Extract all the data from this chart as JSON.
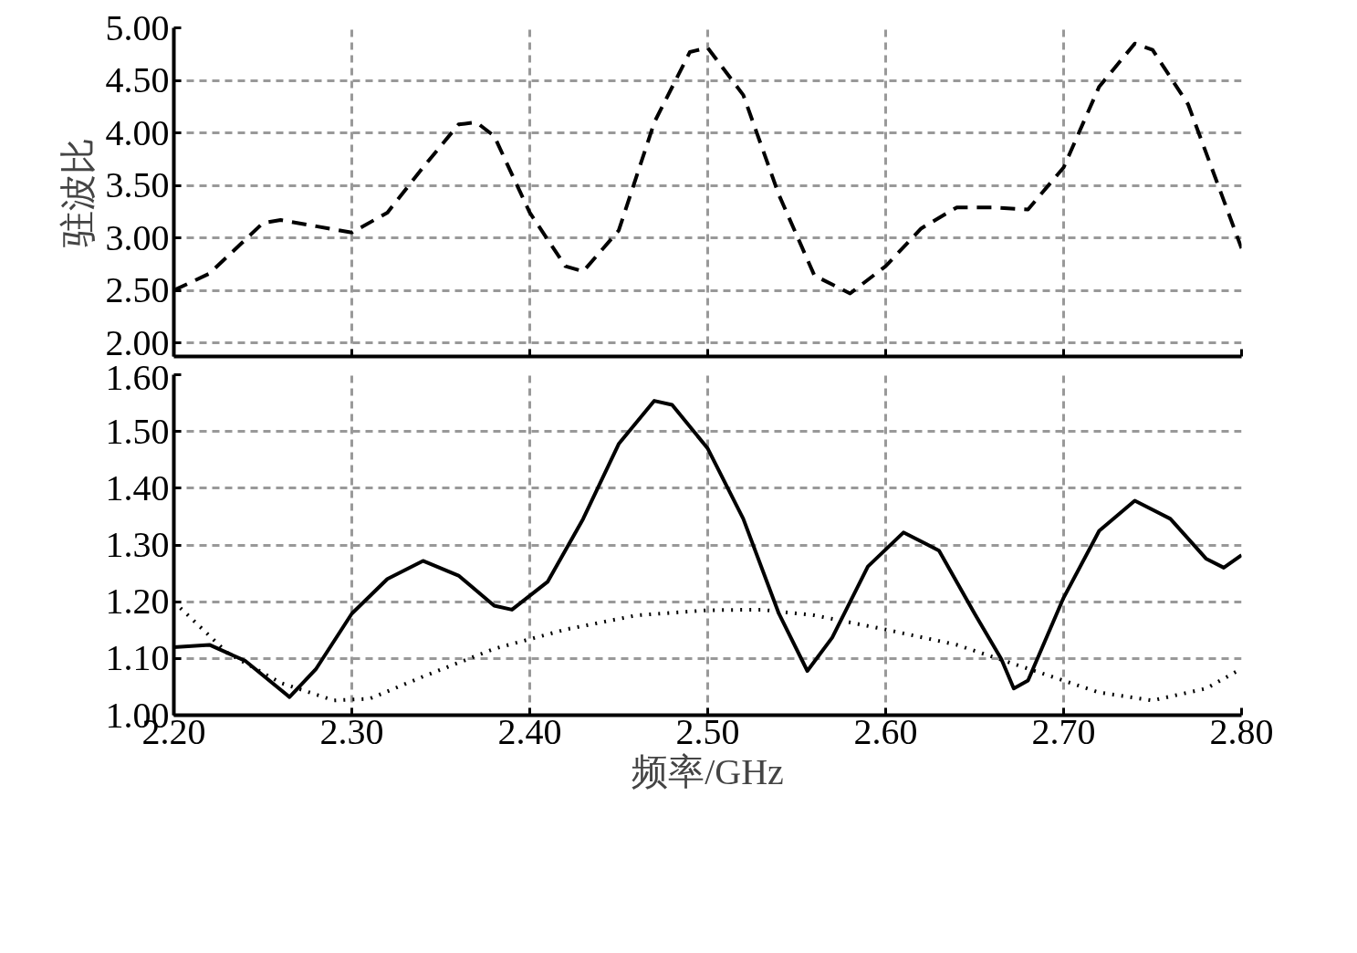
{
  "chart_data": [
    {
      "type": "line",
      "ylabel": "驻波比",
      "xlim": [
        2.2,
        2.8
      ],
      "ylim": [
        1.87,
        5.0
      ],
      "xticks": [
        2.2,
        2.3,
        2.4,
        2.5,
        2.6,
        2.7,
        2.8
      ],
      "yticks": [
        {
          "value": 2.0,
          "label": "2.00"
        },
        {
          "value": 2.5,
          "label": "2.50"
        },
        {
          "value": 3.0,
          "label": "3.00"
        },
        {
          "value": 3.5,
          "label": "3.50"
        },
        {
          "value": 4.0,
          "label": "4.00"
        },
        {
          "value": 4.5,
          "label": "4.50"
        },
        {
          "value": 5.0,
          "label": "5.00"
        }
      ],
      "tick_labels": "y",
      "grid": true,
      "marker": "none",
      "series": [
        {
          "color": "#000000",
          "line_style": "dashed",
          "x": [
            2.2,
            2.22,
            2.25,
            2.26,
            2.28,
            2.3,
            2.32,
            2.34,
            2.36,
            2.37,
            2.38,
            2.4,
            2.42,
            2.43,
            2.45,
            2.47,
            2.49,
            2.5,
            2.52,
            2.54,
            2.56,
            2.58,
            2.6,
            2.62,
            2.64,
            2.66,
            2.68,
            2.7,
            2.72,
            2.74,
            2.75,
            2.77,
            2.8
          ],
          "values": [
            2.5,
            2.66,
            3.14,
            3.17,
            3.11,
            3.05,
            3.24,
            3.67,
            4.08,
            4.1,
            3.97,
            3.24,
            2.73,
            2.68,
            3.07,
            4.1,
            4.77,
            4.81,
            4.36,
            3.41,
            2.64,
            2.47,
            2.73,
            3.09,
            3.29,
            3.29,
            3.27,
            3.67,
            4.44,
            4.85,
            4.79,
            4.27,
            2.9
          ]
        }
      ]
    },
    {
      "type": "line",
      "xlabel": "频率/GHz",
      "xlim": [
        2.2,
        2.8
      ],
      "ylim": [
        1.0,
        1.6
      ],
      "xticks": [
        {
          "value": 2.2,
          "label": "2.20"
        },
        {
          "value": 2.3,
          "label": "2.30"
        },
        {
          "value": 2.4,
          "label": "2.40"
        },
        {
          "value": 2.5,
          "label": "2.50"
        },
        {
          "value": 2.6,
          "label": "2.60"
        },
        {
          "value": 2.7,
          "label": "2.70"
        },
        {
          "value": 2.8,
          "label": "2.80"
        }
      ],
      "yticks": [
        {
          "value": 1.0,
          "label": "1.00"
        },
        {
          "value": 1.1,
          "label": "1.10"
        },
        {
          "value": 1.2,
          "label": "1.20"
        },
        {
          "value": 1.3,
          "label": "1.30"
        },
        {
          "value": 1.4,
          "label": "1.40"
        },
        {
          "value": 1.5,
          "label": "1.50"
        },
        {
          "value": 1.6,
          "label": "1.60"
        }
      ],
      "grid": true,
      "marker": "none",
      "series": [
        {
          "color": "#000000",
          "line_style": "solid",
          "x": [
            2.2,
            2.22,
            2.24,
            2.265,
            2.28,
            2.3,
            2.32,
            2.34,
            2.36,
            2.38,
            2.39,
            2.41,
            2.43,
            2.45,
            2.47,
            2.48,
            2.5,
            2.52,
            2.54,
            2.556,
            2.57,
            2.59,
            2.61,
            2.63,
            2.65,
            2.665,
            2.672,
            2.68,
            2.7,
            2.72,
            2.74,
            2.76,
            2.78,
            2.79,
            2.8
          ],
          "values": [
            1.12,
            1.124,
            1.096,
            1.032,
            1.082,
            1.179,
            1.24,
            1.272,
            1.246,
            1.193,
            1.186,
            1.235,
            1.346,
            1.478,
            1.554,
            1.547,
            1.47,
            1.346,
            1.179,
            1.078,
            1.137,
            1.262,
            1.322,
            1.29,
            1.179,
            1.099,
            1.047,
            1.061,
            1.207,
            1.325,
            1.378,
            1.346,
            1.276,
            1.26,
            1.282
          ]
        },
        {
          "color": "#000000",
          "line_style": "dotted",
          "x": [
            2.2,
            2.23,
            2.26,
            2.29,
            2.31,
            2.34,
            2.38,
            2.42,
            2.46,
            2.5,
            2.53,
            2.56,
            2.6,
            2.64,
            2.68,
            2.72,
            2.75,
            2.78,
            2.8
          ],
          "values": [
            1.2,
            1.11,
            1.057,
            1.026,
            1.029,
            1.068,
            1.117,
            1.151,
            1.176,
            1.185,
            1.186,
            1.176,
            1.151,
            1.124,
            1.082,
            1.04,
            1.026,
            1.047,
            1.082
          ]
        }
      ]
    }
  ]
}
